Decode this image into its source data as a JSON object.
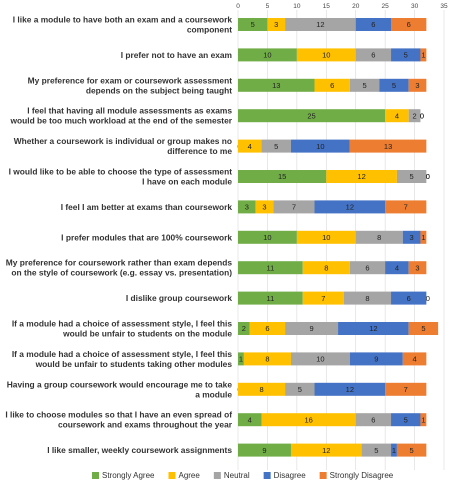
{
  "chart_data": {
    "type": "bar",
    "orientation": "horizontal",
    "stacked": true,
    "title": "",
    "xlabel": "",
    "ylabel": "",
    "xlim": [
      0,
      35
    ],
    "xticks": [
      0,
      5,
      10,
      15,
      20,
      25,
      30,
      35
    ],
    "grid": true,
    "legend_position": "bottom",
    "categories": [
      "I like a module to have both an exam and a coursework component",
      "I prefer not to have an exam",
      "My preference for exam or coursework assessment depends on the subject being taught",
      "I feel that having all module assessments as exams would be too much workload at the end of the semester",
      "Whether a coursework is individual or group makes no difference to me",
      "I would like to be able to choose the type of assessment I have on each module",
      "I feel I am better at exams than coursework",
      "I prefer modules that are 100% coursework",
      "My preference for coursework rather than exam depends on the style of coursework (e.g. essay vs. presentation)",
      "I dislike group coursework",
      "If a module had a choice of assessment style, I feel this would be unfair to students on the module",
      "If a module had a choice of assessment style, I feel this would be unfair to students taking other modules",
      "Having a group coursework would encourage me to take a module",
      "I like to choose modules so that I have an even spread of coursework and exams throughout the year",
      "I like smaller, weekly coursework assignments"
    ],
    "series": [
      {
        "name": "Strongly Agree",
        "color": "#70ad47",
        "values": [
          5,
          10,
          13,
          25,
          0,
          15,
          3,
          10,
          11,
          11,
          2,
          1,
          0,
          4,
          9
        ]
      },
      {
        "name": "Agree",
        "color": "#ffc000",
        "values": [
          3,
          10,
          6,
          4,
          4,
          12,
          3,
          10,
          8,
          7,
          6,
          8,
          8,
          16,
          12
        ]
      },
      {
        "name": "Neutral",
        "color": "#a5a5a5",
        "values": [
          12,
          6,
          5,
          2,
          5,
          5,
          7,
          8,
          6,
          8,
          9,
          10,
          5,
          6,
          5
        ]
      },
      {
        "name": "Disagree",
        "color": "#4472c4",
        "values": [
          6,
          5,
          5,
          0,
          10,
          0,
          12,
          3,
          4,
          6,
          12,
          9,
          12,
          5,
          1
        ]
      },
      {
        "name": "Strongly Disagree",
        "color": "#ed7d31",
        "values": [
          6,
          1,
          3,
          0,
          13,
          0,
          7,
          1,
          3,
          0,
          5,
          4,
          7,
          1,
          5
        ]
      }
    ]
  }
}
